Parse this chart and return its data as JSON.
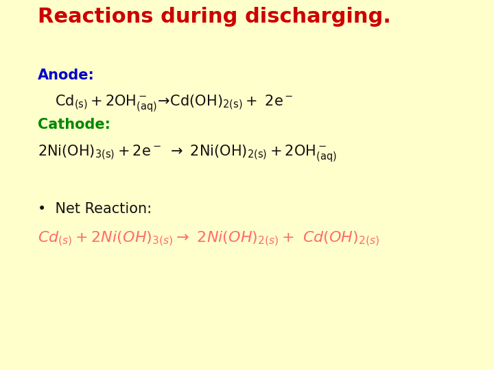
{
  "background_color": "#FFFFCC",
  "title": "Reactions during discharging.",
  "title_color": "#CC0000",
  "title_fontsize": 22,
  "anode_label": "Anode:",
  "anode_color": "#0000CC",
  "cathode_label": "Cathode:",
  "cathode_color": "#008800",
  "black_color": "#111111",
  "net_label": "•  Net Reaction:",
  "net_color": "#111111",
  "body_fontsize": 15,
  "net_eq_color": "#FF6B6B"
}
